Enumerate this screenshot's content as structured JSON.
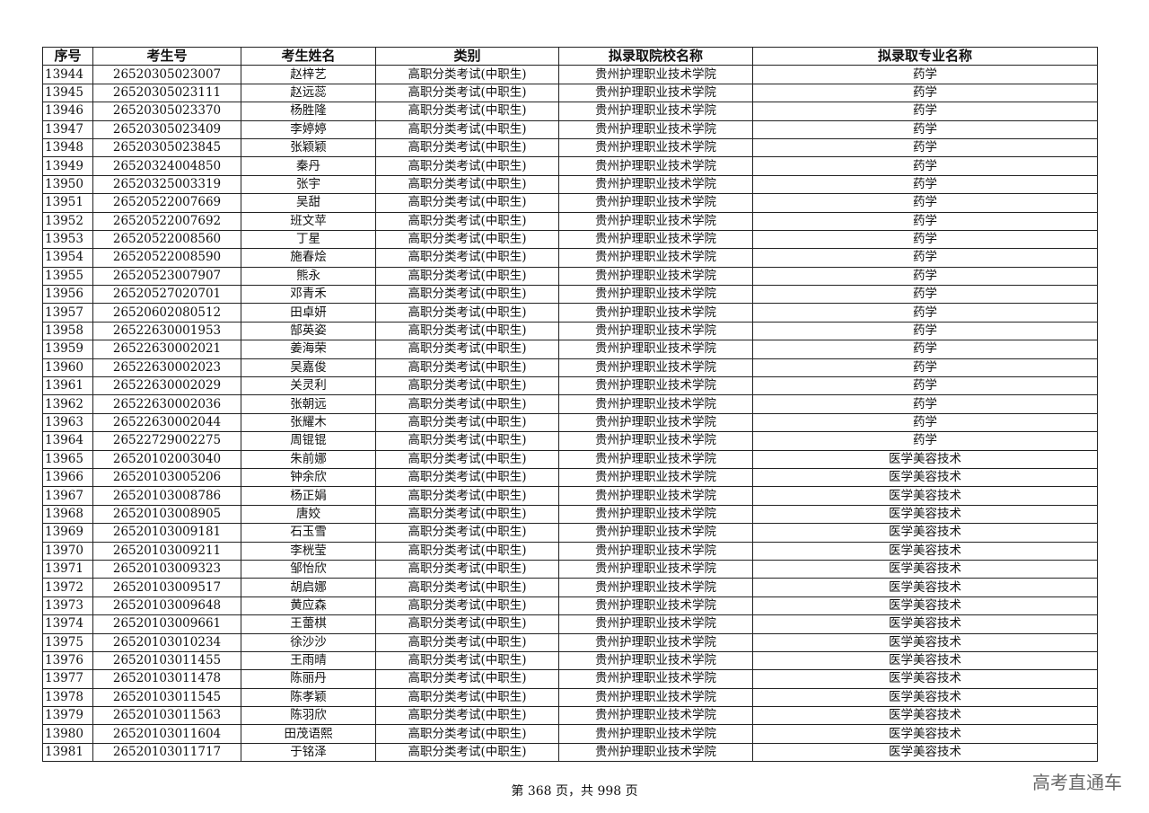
{
  "columns": [
    "序号",
    "考生号",
    "考生姓名",
    "类别",
    "拟录取院校名称",
    "拟录取专业名称"
  ],
  "rows": [
    [
      "13944",
      "26520305023007",
      "赵梓艺",
      "高职分类考试(中职生)",
      "贵州护理职业技术学院",
      "药学"
    ],
    [
      "13945",
      "26520305023111",
      "赵远蕊",
      "高职分类考试(中职生)",
      "贵州护理职业技术学院",
      "药学"
    ],
    [
      "13946",
      "26520305023370",
      "杨胜隆",
      "高职分类考试(中职生)",
      "贵州护理职业技术学院",
      "药学"
    ],
    [
      "13947",
      "26520305023409",
      "李婷婷",
      "高职分类考试(中职生)",
      "贵州护理职业技术学院",
      "药学"
    ],
    [
      "13948",
      "26520305023845",
      "张颖颖",
      "高职分类考试(中职生)",
      "贵州护理职业技术学院",
      "药学"
    ],
    [
      "13949",
      "26520324004850",
      "秦丹",
      "高职分类考试(中职生)",
      "贵州护理职业技术学院",
      "药学"
    ],
    [
      "13950",
      "26520325003319",
      "张宇",
      "高职分类考试(中职生)",
      "贵州护理职业技术学院",
      "药学"
    ],
    [
      "13951",
      "26520522007669",
      "吴甜",
      "高职分类考试(中职生)",
      "贵州护理职业技术学院",
      "药学"
    ],
    [
      "13952",
      "26520522007692",
      "班文苹",
      "高职分类考试(中职生)",
      "贵州护理职业技术学院",
      "药学"
    ],
    [
      "13953",
      "26520522008560",
      "丁星",
      "高职分类考试(中职生)",
      "贵州护理职业技术学院",
      "药学"
    ],
    [
      "13954",
      "26520522008590",
      "施春烩",
      "高职分类考试(中职生)",
      "贵州护理职业技术学院",
      "药学"
    ],
    [
      "13955",
      "26520523007907",
      "熊永",
      "高职分类考试(中职生)",
      "贵州护理职业技术学院",
      "药学"
    ],
    [
      "13956",
      "26520527020701",
      "邓青禾",
      "高职分类考试(中职生)",
      "贵州护理职业技术学院",
      "药学"
    ],
    [
      "13957",
      "26520602080512",
      "田卓妍",
      "高职分类考试(中职生)",
      "贵州护理职业技术学院",
      "药学"
    ],
    [
      "13958",
      "26522630001953",
      "郜英姿",
      "高职分类考试(中职生)",
      "贵州护理职业技术学院",
      "药学"
    ],
    [
      "13959",
      "26522630002021",
      "姜海荣",
      "高职分类考试(中职生)",
      "贵州护理职业技术学院",
      "药学"
    ],
    [
      "13960",
      "26522630002023",
      "吴嘉俊",
      "高职分类考试(中职生)",
      "贵州护理职业技术学院",
      "药学"
    ],
    [
      "13961",
      "26522630002029",
      "关灵利",
      "高职分类考试(中职生)",
      "贵州护理职业技术学院",
      "药学"
    ],
    [
      "13962",
      "26522630002036",
      "张朝远",
      "高职分类考试(中职生)",
      "贵州护理职业技术学院",
      "药学"
    ],
    [
      "13963",
      "26522630002044",
      "张耀木",
      "高职分类考试(中职生)",
      "贵州护理职业技术学院",
      "药学"
    ],
    [
      "13964",
      "26522729002275",
      "周锟锟",
      "高职分类考试(中职生)",
      "贵州护理职业技术学院",
      "药学"
    ],
    [
      "13965",
      "26520102003040",
      "朱前娜",
      "高职分类考试(中职生)",
      "贵州护理职业技术学院",
      "医学美容技术"
    ],
    [
      "13966",
      "26520103005206",
      "钟余欣",
      "高职分类考试(中职生)",
      "贵州护理职业技术学院",
      "医学美容技术"
    ],
    [
      "13967",
      "26520103008786",
      "杨正娟",
      "高职分类考试(中职生)",
      "贵州护理职业技术学院",
      "医学美容技术"
    ],
    [
      "13968",
      "26520103008905",
      "唐姣",
      "高职分类考试(中职生)",
      "贵州护理职业技术学院",
      "医学美容技术"
    ],
    [
      "13969",
      "26520103009181",
      "石玉雪",
      "高职分类考试(中职生)",
      "贵州护理职业技术学院",
      "医学美容技术"
    ],
    [
      "13970",
      "26520103009211",
      "李桄莹",
      "高职分类考试(中职生)",
      "贵州护理职业技术学院",
      "医学美容技术"
    ],
    [
      "13971",
      "26520103009323",
      "邹怡欣",
      "高职分类考试(中职生)",
      "贵州护理职业技术学院",
      "医学美容技术"
    ],
    [
      "13972",
      "26520103009517",
      "胡启娜",
      "高职分类考试(中职生)",
      "贵州护理职业技术学院",
      "医学美容技术"
    ],
    [
      "13973",
      "26520103009648",
      "黄应森",
      "高职分类考试(中职生)",
      "贵州护理职业技术学院",
      "医学美容技术"
    ],
    [
      "13974",
      "26520103009661",
      "王蕾棋",
      "高职分类考试(中职生)",
      "贵州护理职业技术学院",
      "医学美容技术"
    ],
    [
      "13975",
      "26520103010234",
      "徐沙沙",
      "高职分类考试(中职生)",
      "贵州护理职业技术学院",
      "医学美容技术"
    ],
    [
      "13976",
      "26520103011455",
      "王雨晴",
      "高职分类考试(中职生)",
      "贵州护理职业技术学院",
      "医学美容技术"
    ],
    [
      "13977",
      "26520103011478",
      "陈丽丹",
      "高职分类考试(中职生)",
      "贵州护理职业技术学院",
      "医学美容技术"
    ],
    [
      "13978",
      "26520103011545",
      "陈孝颖",
      "高职分类考试(中职生)",
      "贵州护理职业技术学院",
      "医学美容技术"
    ],
    [
      "13979",
      "26520103011563",
      "陈羽欣",
      "高职分类考试(中职生)",
      "贵州护理职业技术学院",
      "医学美容技术"
    ],
    [
      "13980",
      "26520103011604",
      "田茂语熙",
      "高职分类考试(中职生)",
      "贵州护理职业技术学院",
      "医学美容技术"
    ],
    [
      "13981",
      "26520103011717",
      "于铭泽",
      "高职分类考试(中职生)",
      "贵州护理职业技术学院",
      "医学美容技术"
    ]
  ],
  "footer": {
    "page_text": "第 368 页，共 998 页"
  },
  "watermark": {
    "brand": "高考直通车"
  }
}
